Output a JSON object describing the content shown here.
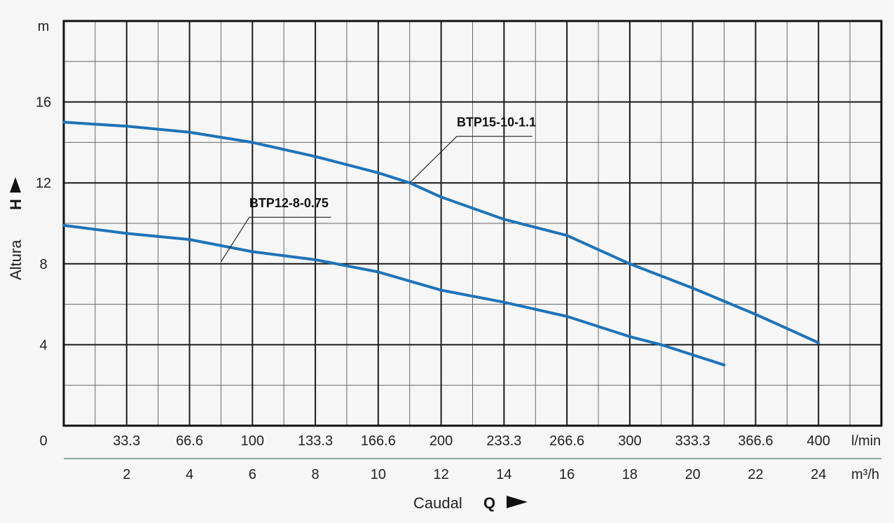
{
  "chart_data": {
    "type": "line",
    "title": "",
    "ylabel": "Altura",
    "ylabel_symbol": "H",
    "yunit": "m",
    "xlabel": "Caudal",
    "xlabel_symbol": "Q",
    "xunit_primary": "l/min",
    "xunit_secondary": "m³/h",
    "ylim": [
      0,
      20
    ],
    "xlim": [
      0,
      26
    ],
    "y_ticks": [
      "0",
      "4",
      "8",
      "12",
      "16"
    ],
    "y_tick_values": [
      0,
      4,
      8,
      12,
      16
    ],
    "x_ticks_m3h": [
      "2",
      "4",
      "6",
      "8",
      "10",
      "12",
      "14",
      "16",
      "18",
      "20",
      "22",
      "24"
    ],
    "x_ticks_m3h_values": [
      2,
      4,
      6,
      8,
      10,
      12,
      14,
      16,
      18,
      20,
      22,
      24
    ],
    "x_ticks_lmin": [
      "33.3",
      "66.6",
      "100",
      "133.3",
      "166.6",
      "200",
      "233.3",
      "266.6",
      "300",
      "333.3",
      "366.6",
      "400"
    ],
    "grid": true,
    "series": [
      {
        "name": "BTP15-10-1.1",
        "color": "#1e73b8",
        "x": [
          0,
          2,
          4,
          6,
          8,
          10,
          11,
          12,
          14,
          16,
          18,
          20,
          22,
          24
        ],
        "y": [
          15.0,
          14.8,
          14.5,
          14.0,
          13.3,
          12.5,
          12.0,
          11.3,
          10.2,
          9.4,
          8.0,
          6.8,
          5.5,
          4.1
        ]
      },
      {
        "name": "BTP12-8-0.75",
        "color": "#1e73b8",
        "x": [
          0,
          2,
          4,
          6,
          8,
          10,
          12,
          14,
          16,
          18,
          19,
          20,
          21
        ],
        "y": [
          9.9,
          9.5,
          9.2,
          8.6,
          8.2,
          7.6,
          6.7,
          6.1,
          5.4,
          4.4,
          4.0,
          3.5,
          3.0
        ]
      }
    ]
  }
}
